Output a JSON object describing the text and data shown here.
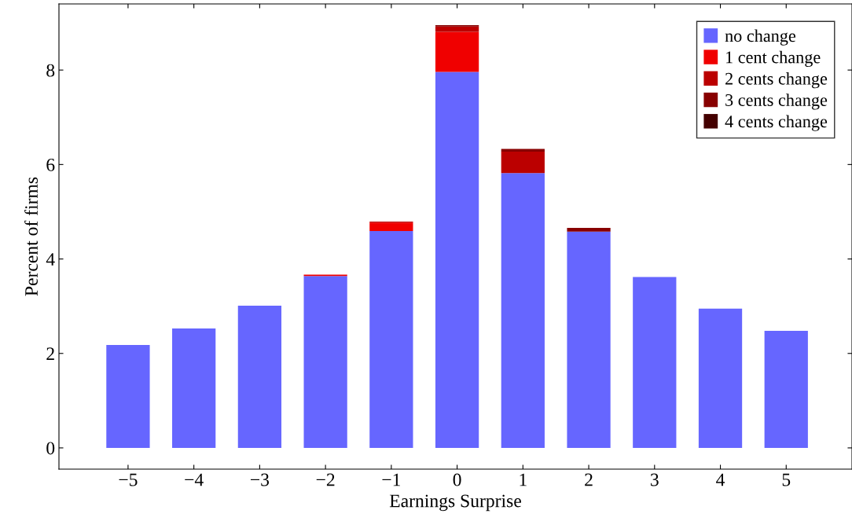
{
  "chart_data": {
    "type": "bar",
    "stacked": true,
    "xlabel": "Earnings Surprise",
    "ylabel": "Percent of firms",
    "x": [
      -5,
      -4,
      -3,
      -2,
      -1,
      0,
      1,
      2,
      3,
      4,
      5
    ],
    "series": [
      {
        "name": "no change",
        "color": "#6666ff",
        "values": [
          2.18,
          2.53,
          3.01,
          3.64,
          4.59,
          7.96,
          5.82,
          4.58,
          3.62,
          2.95,
          2.48
        ]
      },
      {
        "name": "1 cent change",
        "color": "#f00000",
        "values": [
          0,
          0,
          0,
          0.03,
          0.18,
          0.85,
          0,
          0,
          0,
          0,
          0
        ]
      },
      {
        "name": "2 cents change",
        "color": "#bb0000",
        "values": [
          0,
          0,
          0,
          0,
          0.02,
          0.11,
          0.45,
          0,
          0,
          0,
          0
        ]
      },
      {
        "name": "3 cents change",
        "color": "#880000",
        "values": [
          0,
          0,
          0,
          0,
          0,
          0.03,
          0.06,
          0.08,
          0,
          0,
          0
        ]
      },
      {
        "name": "4 cents change",
        "color": "#440000",
        "values": [
          0,
          0,
          0,
          0,
          0,
          0,
          0,
          0,
          0,
          0,
          0
        ]
      }
    ],
    "xlim": [
      -6.05,
      6.0
    ],
    "ylim": [
      -0.45,
      9.4
    ],
    "xticks": [
      {
        "value": -5,
        "label": "−5"
      },
      {
        "value": -4,
        "label": "−4"
      },
      {
        "value": -3,
        "label": "−3"
      },
      {
        "value": -2,
        "label": "−2"
      },
      {
        "value": -1,
        "label": "−1"
      },
      0,
      1,
      2,
      3,
      4,
      5
    ],
    "yticks": [
      0,
      2,
      4,
      6,
      8
    ],
    "legend": "top right",
    "grid": false
  }
}
